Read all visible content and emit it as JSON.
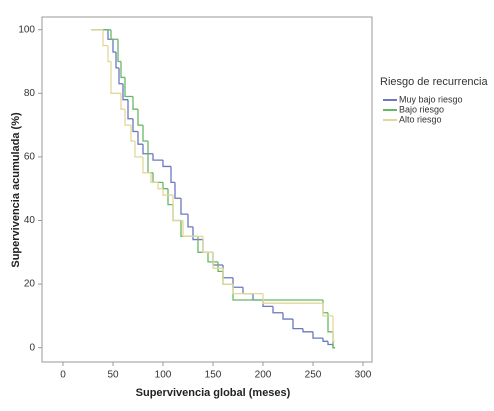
{
  "chart_data": {
    "type": "step",
    "x_label": "Supervivencia global (meses)",
    "y_label": "Supervivencia acumulada (%)",
    "legend_title": "Riesgo de recurrencia",
    "legend_position": "right",
    "xlim": [
      -21,
      309
    ],
    "ylim": [
      -4.5,
      104
    ],
    "xticks": [
      0,
      50,
      100,
      150,
      200,
      250,
      300
    ],
    "yticks": [
      0,
      20,
      40,
      60,
      80,
      100
    ],
    "series": [
      {
        "name": "Muy bajo riesgo",
        "color": "#6a78bf",
        "x": [
          28,
          45,
          50,
          53,
          56,
          60,
          65,
          70,
          75,
          80,
          90,
          100,
          108,
          112,
          118,
          125,
          130,
          140,
          150,
          160,
          170,
          180,
          190,
          200,
          210,
          220,
          230,
          240,
          250,
          260,
          265,
          270
        ],
        "values": [
          100,
          97,
          93,
          88,
          83,
          78,
          72,
          68,
          64,
          61,
          59,
          57,
          52,
          47,
          42,
          38,
          34,
          30,
          26,
          22,
          19,
          17,
          15,
          13,
          11,
          9,
          6,
          5,
          3,
          2,
          1,
          0
        ]
      },
      {
        "name": "Bajo riesgo",
        "color": "#66b866",
        "x": [
          30,
          48,
          55,
          58,
          62,
          70,
          75,
          80,
          85,
          90,
          100,
          105,
          110,
          118,
          135,
          145,
          155,
          160,
          170,
          260,
          265,
          270
        ],
        "values": [
          100,
          97,
          90,
          85,
          79,
          75,
          70,
          65,
          55,
          52,
          50,
          45,
          40,
          35,
          30,
          27,
          24,
          20,
          15,
          11,
          5,
          0
        ]
      },
      {
        "name": "Alto riesgo",
        "color": "#e2d79a",
        "x": [
          28,
          40,
          45,
          48,
          58,
          62,
          68,
          72,
          80,
          88,
          95,
          100,
          110,
          120,
          140,
          150,
          160,
          170,
          200,
          260,
          270
        ],
        "values": [
          100,
          95,
          90,
          80,
          75,
          70,
          65,
          60,
          55,
          52,
          50,
          48,
          40,
          35,
          30,
          25,
          20,
          17,
          14,
          10,
          2
        ]
      }
    ]
  }
}
